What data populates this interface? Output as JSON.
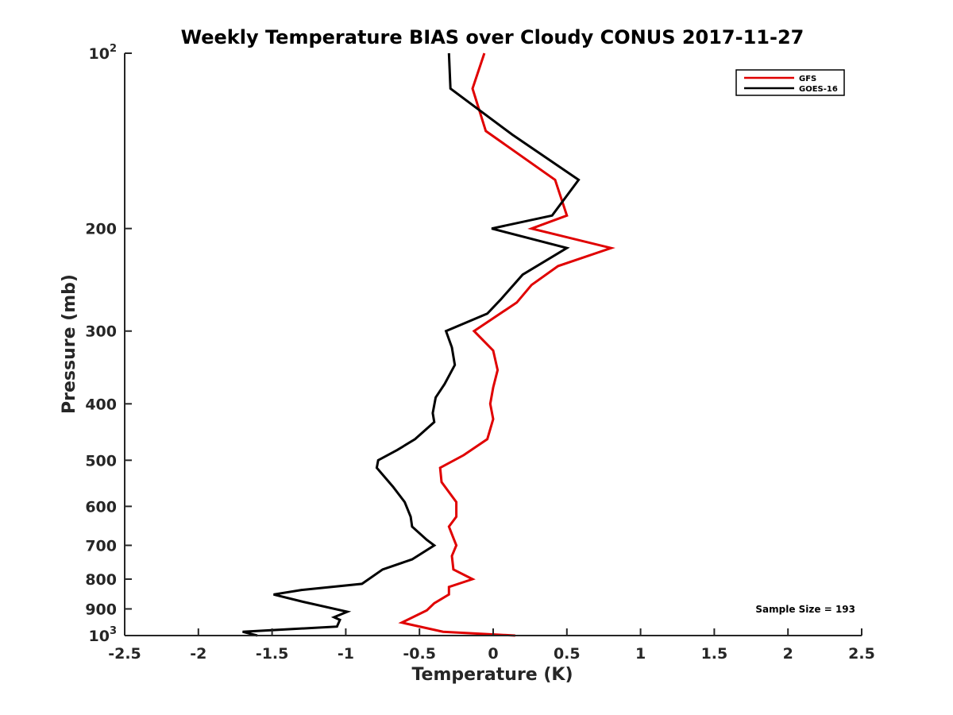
{
  "chart_data": {
    "type": "line",
    "title": "Weekly Temperature BIAS over Cloudy CONUS 2017-11-27",
    "xlabel": "Temperature (K)",
    "ylabel": "Pressure (mb)",
    "xlim": [
      -2.5,
      2.5
    ],
    "ylim": [
      100,
      1000
    ],
    "yscale": "log",
    "yreversed": true,
    "grid": false,
    "x_ticks": [
      "-2.5",
      "-2",
      "-1.5",
      "-1",
      "-0.5",
      "0",
      "0.5",
      "1",
      "1.5",
      "2",
      "2.5"
    ],
    "y_ticks": [
      {
        "value": 100,
        "base": "10",
        "exp": "2"
      },
      {
        "value": 200,
        "text": "200"
      },
      {
        "value": 300,
        "text": "300"
      },
      {
        "value": 400,
        "text": "400"
      },
      {
        "value": 500,
        "text": "500"
      },
      {
        "value": 600,
        "text": "600"
      },
      {
        "value": 700,
        "text": "700"
      },
      {
        "value": 800,
        "text": "800"
      },
      {
        "value": 900,
        "text": "900"
      },
      {
        "value": 1000,
        "base": "10",
        "exp": "3"
      }
    ],
    "legend_position": "top-right",
    "annotation": "Sample Size = 193",
    "series": [
      {
        "name": "GFS",
        "color": "#e00000",
        "points": [
          [
            -0.06,
            100
          ],
          [
            -0.14,
            115
          ],
          [
            -0.05,
            136
          ],
          [
            0.42,
            165
          ],
          [
            0.5,
            190
          ],
          [
            0.26,
            200
          ],
          [
            0.8,
            216
          ],
          [
            0.44,
            232
          ],
          [
            0.26,
            250
          ],
          [
            0.16,
            268
          ],
          [
            -0.13,
            300
          ],
          [
            0.0,
            324
          ],
          [
            0.03,
            350
          ],
          [
            0.0,
            375
          ],
          [
            -0.02,
            400
          ],
          [
            0.0,
            425
          ],
          [
            -0.04,
            460
          ],
          [
            -0.2,
            490
          ],
          [
            -0.36,
            515
          ],
          [
            -0.35,
            545
          ],
          [
            -0.25,
            590
          ],
          [
            -0.25,
            625
          ],
          [
            -0.3,
            650
          ],
          [
            -0.27,
            680
          ],
          [
            -0.25,
            700
          ],
          [
            -0.28,
            730
          ],
          [
            -0.27,
            770
          ],
          [
            -0.14,
            800
          ],
          [
            -0.3,
            825
          ],
          [
            -0.3,
            850
          ],
          [
            -0.4,
            880
          ],
          [
            -0.45,
            905
          ],
          [
            -0.62,
            950
          ],
          [
            -0.34,
            985
          ],
          [
            0.15,
            1000
          ]
        ]
      },
      {
        "name": "GOES-16",
        "color": "#000000",
        "points": [
          [
            -0.3,
            100
          ],
          [
            -0.29,
            115
          ],
          [
            0.13,
            138
          ],
          [
            0.58,
            165
          ],
          [
            0.4,
            190
          ],
          [
            -0.01,
            200
          ],
          [
            0.5,
            216
          ],
          [
            0.2,
            240
          ],
          [
            0.05,
            265
          ],
          [
            -0.04,
            280
          ],
          [
            -0.32,
            300
          ],
          [
            -0.28,
            320
          ],
          [
            -0.26,
            343
          ],
          [
            -0.33,
            370
          ],
          [
            -0.39,
            390
          ],
          [
            -0.41,
            415
          ],
          [
            -0.4,
            430
          ],
          [
            -0.53,
            460
          ],
          [
            -0.65,
            480
          ],
          [
            -0.78,
            500
          ],
          [
            -0.79,
            515
          ],
          [
            -0.68,
            555
          ],
          [
            -0.6,
            590
          ],
          [
            -0.56,
            625
          ],
          [
            -0.55,
            650
          ],
          [
            -0.45,
            685
          ],
          [
            -0.4,
            700
          ],
          [
            -0.55,
            740
          ],
          [
            -0.75,
            770
          ],
          [
            -0.89,
            815
          ],
          [
            -1.3,
            835
          ],
          [
            -1.49,
            850
          ],
          [
            -1.29,
            875
          ],
          [
            -0.99,
            910
          ],
          [
            -1.08,
            930
          ],
          [
            -1.04,
            940
          ],
          [
            -1.06,
            965
          ],
          [
            -1.7,
            985
          ],
          [
            -1.6,
            1000
          ]
        ]
      }
    ]
  }
}
